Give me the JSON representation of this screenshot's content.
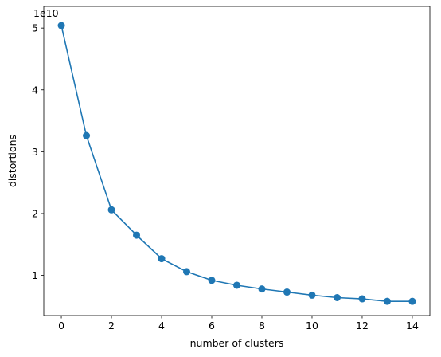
{
  "chart_data": {
    "type": "line",
    "title": "",
    "xlabel": "number of clusters",
    "ylabel": "distortions",
    "y_offset_label": "1e10",
    "xlim": [
      -0.7,
      14.7
    ],
    "ylim": [
      0.35,
      5.35
    ],
    "xticks": [
      0,
      2,
      4,
      6,
      8,
      10,
      12,
      14
    ],
    "yticks": [
      1,
      2,
      3,
      4,
      5
    ],
    "grid": false,
    "series": [
      {
        "name": "distortions",
        "color": "#1f77b4",
        "marker": "circle",
        "x": [
          0,
          1,
          2,
          3,
          4,
          5,
          6,
          7,
          8,
          9,
          10,
          11,
          12,
          13,
          14
        ],
        "y": [
          5.04,
          3.26,
          2.06,
          1.65,
          1.27,
          1.06,
          0.92,
          0.84,
          0.78,
          0.73,
          0.68,
          0.64,
          0.62,
          0.58,
          0.58
        ]
      }
    ]
  }
}
